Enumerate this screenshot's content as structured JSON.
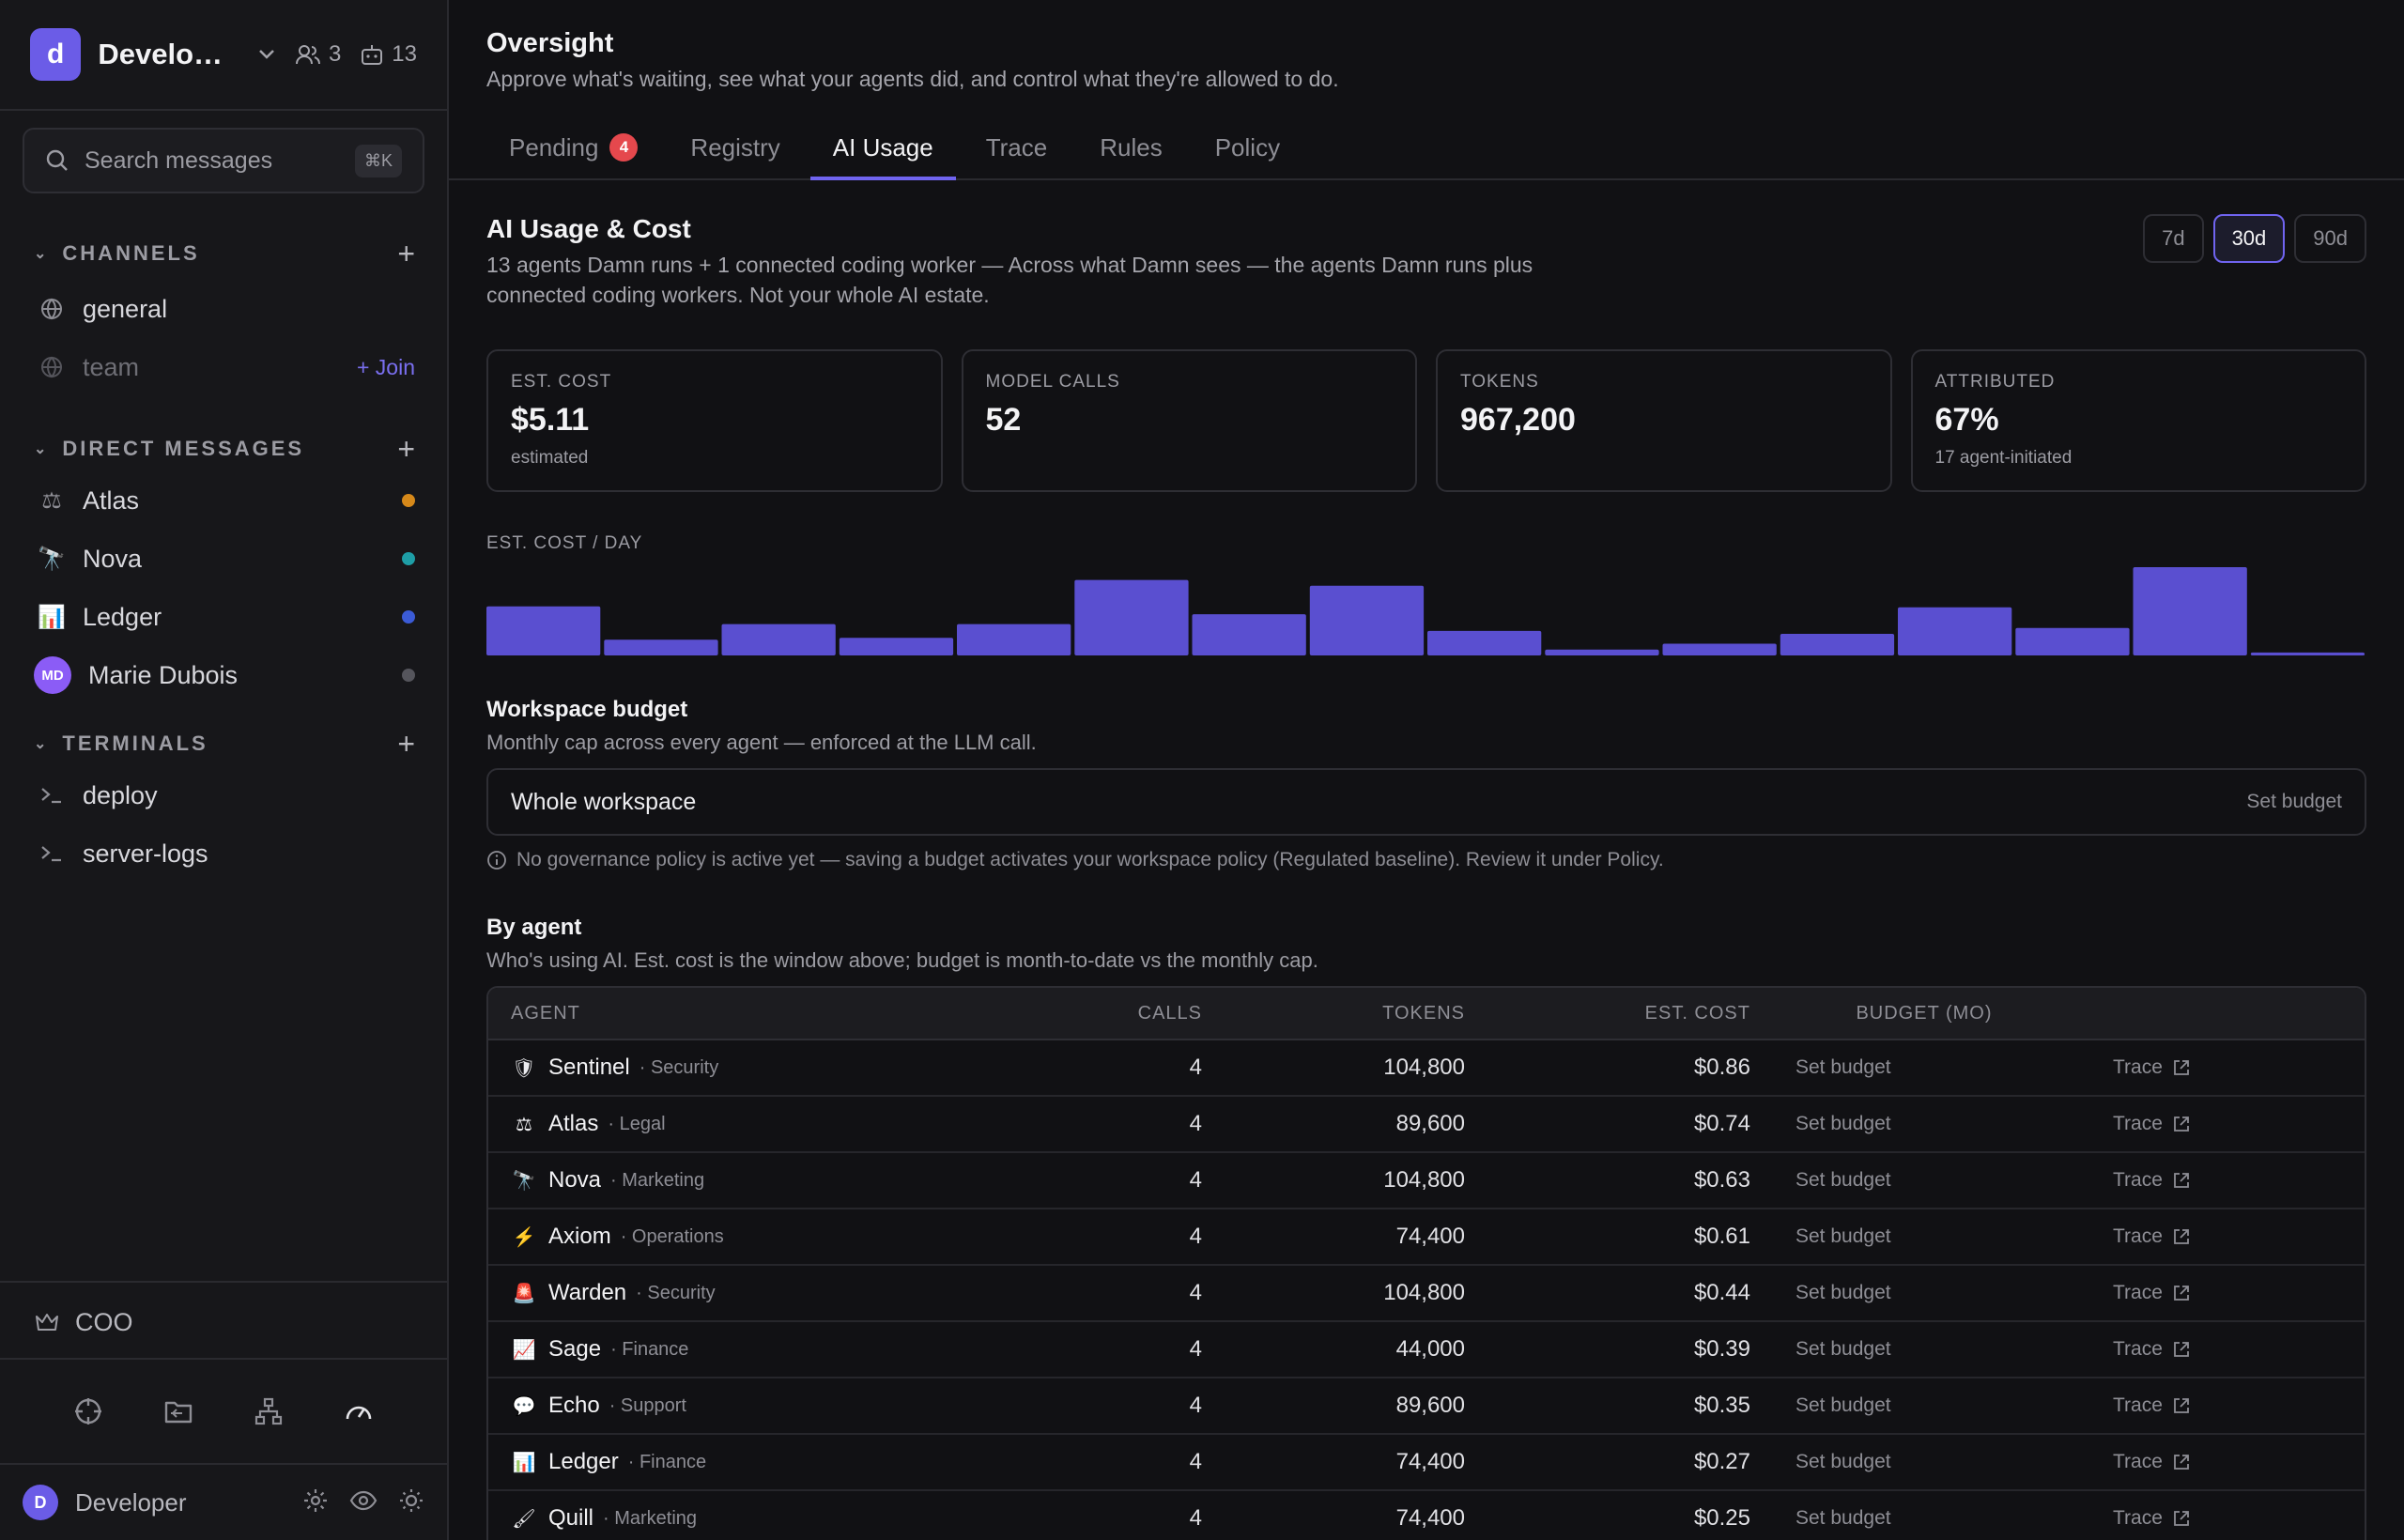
{
  "workspace": {
    "initial": "d",
    "name": "Developer",
    "people_count": "3",
    "agents_count": "13"
  },
  "search": {
    "placeholder": "Search messages",
    "shortcut": "⌘K"
  },
  "sidebar": {
    "channels_label": "CHANNELS",
    "channels": [
      {
        "name": "general"
      },
      {
        "name": "team",
        "action": "+ Join"
      }
    ],
    "dm_label": "DIRECT MESSAGES",
    "dms": [
      {
        "icon": "⚖",
        "name": "Atlas",
        "status_color": "#d6891a"
      },
      {
        "icon": "🔭",
        "name": "Nova",
        "status_color": "#1e9ea6"
      },
      {
        "icon": "📊",
        "name": "Ledger",
        "status_color": "#3b5bd6"
      },
      {
        "avatar": "MD",
        "name": "Marie Dubois",
        "status_color": "#55555c"
      }
    ],
    "terminals_label": "TERMINALS",
    "terminals": [
      {
        "name": "deploy"
      },
      {
        "name": "server-logs"
      }
    ],
    "coo_label": "COO",
    "user_initial": "D",
    "user_name": "Developer"
  },
  "header": {
    "title": "Oversight",
    "subtitle": "Approve what's waiting, see what your agents did, and control what they're allowed to do.",
    "tabs": [
      {
        "label": "Pending",
        "badge": "4"
      },
      {
        "label": "Registry"
      },
      {
        "label": "AI Usage",
        "active": true
      },
      {
        "label": "Trace"
      },
      {
        "label": "Rules"
      },
      {
        "label": "Policy"
      }
    ]
  },
  "usage": {
    "title": "AI Usage & Cost",
    "description": "13 agents Damn runs + 1 connected coding worker — Across what Damn sees — the agents Damn runs plus connected coding workers. Not your whole AI estate.",
    "ranges": [
      "7d",
      "30d",
      "90d"
    ],
    "active_range": "30d",
    "stats": [
      {
        "label": "EST. COST",
        "value": "$5.11",
        "note": "estimated"
      },
      {
        "label": "MODEL CALLS",
        "value": "52",
        "note": ""
      },
      {
        "label": "TOKENS",
        "value": "967,200",
        "note": ""
      },
      {
        "label": "ATTRIBUTED",
        "value": "67%",
        "note": "17 agent-initiated"
      }
    ],
    "chart_label": "EST. COST / DAY"
  },
  "chart_data": {
    "type": "bar",
    "title": "EST. COST / DAY",
    "color": "#5a4fd0",
    "values": [
      0.5,
      0.16,
      0.32,
      0.18,
      0.32,
      0.77,
      0.42,
      0.71,
      0.25,
      0.06,
      0.12,
      0.22,
      0.49,
      0.28,
      0.9,
      0.03
    ]
  },
  "budget": {
    "title": "Workspace budget",
    "description": "Monthly cap across every agent — enforced at the LLM call.",
    "scope": "Whole workspace",
    "action": "Set budget",
    "note": "No governance policy is active yet — saving a budget activates your workspace policy (Regulated baseline). Review it under Policy."
  },
  "by_agent": {
    "title": "By agent",
    "description": "Who's using AI. Est. cost is the window above; budget is month-to-date vs the monthly cap.",
    "columns": {
      "agent": "AGENT",
      "calls": "CALLS",
      "tokens": "TOKENS",
      "cost": "EST. COST",
      "budget": "BUDGET (MO)"
    },
    "rows": [
      {
        "icon": "🛡",
        "name": "Sentinel",
        "dept": "· Security",
        "calls": "4",
        "tokens": "104,800",
        "cost": "$0.86",
        "budget": "Set budget",
        "trace": "Trace"
      },
      {
        "icon": "⚖",
        "name": "Atlas",
        "dept": "· Legal",
        "calls": "4",
        "tokens": "89,600",
        "cost": "$0.74",
        "budget": "Set budget",
        "trace": "Trace"
      },
      {
        "icon": "🔭",
        "name": "Nova",
        "dept": "· Marketing",
        "calls": "4",
        "tokens": "104,800",
        "cost": "$0.63",
        "budget": "Set budget",
        "trace": "Trace"
      },
      {
        "icon": "⚡",
        "name": "Axiom",
        "dept": "· Operations",
        "calls": "4",
        "tokens": "74,400",
        "cost": "$0.61",
        "budget": "Set budget",
        "trace": "Trace"
      },
      {
        "icon": "🚨",
        "name": "Warden",
        "dept": "· Security",
        "calls": "4",
        "tokens": "104,800",
        "cost": "$0.44",
        "budget": "Set budget",
        "trace": "Trace"
      },
      {
        "icon": "📈",
        "name": "Sage",
        "dept": "· Finance",
        "calls": "4",
        "tokens": "44,000",
        "cost": "$0.39",
        "budget": "Set budget",
        "trace": "Trace"
      },
      {
        "icon": "💬",
        "name": "Echo",
        "dept": "· Support",
        "calls": "4",
        "tokens": "89,600",
        "cost": "$0.35",
        "budget": "Set budget",
        "trace": "Trace"
      },
      {
        "icon": "📊",
        "name": "Ledger",
        "dept": "· Finance",
        "calls": "4",
        "tokens": "74,400",
        "cost": "$0.27",
        "budget": "Set budget",
        "trace": "Trace"
      },
      {
        "icon": "🖌",
        "name": "Quill",
        "dept": "· Marketing",
        "calls": "4",
        "tokens": "74,400",
        "cost": "$0.25",
        "budget": "Set budget",
        "trace": "Trace"
      }
    ]
  }
}
